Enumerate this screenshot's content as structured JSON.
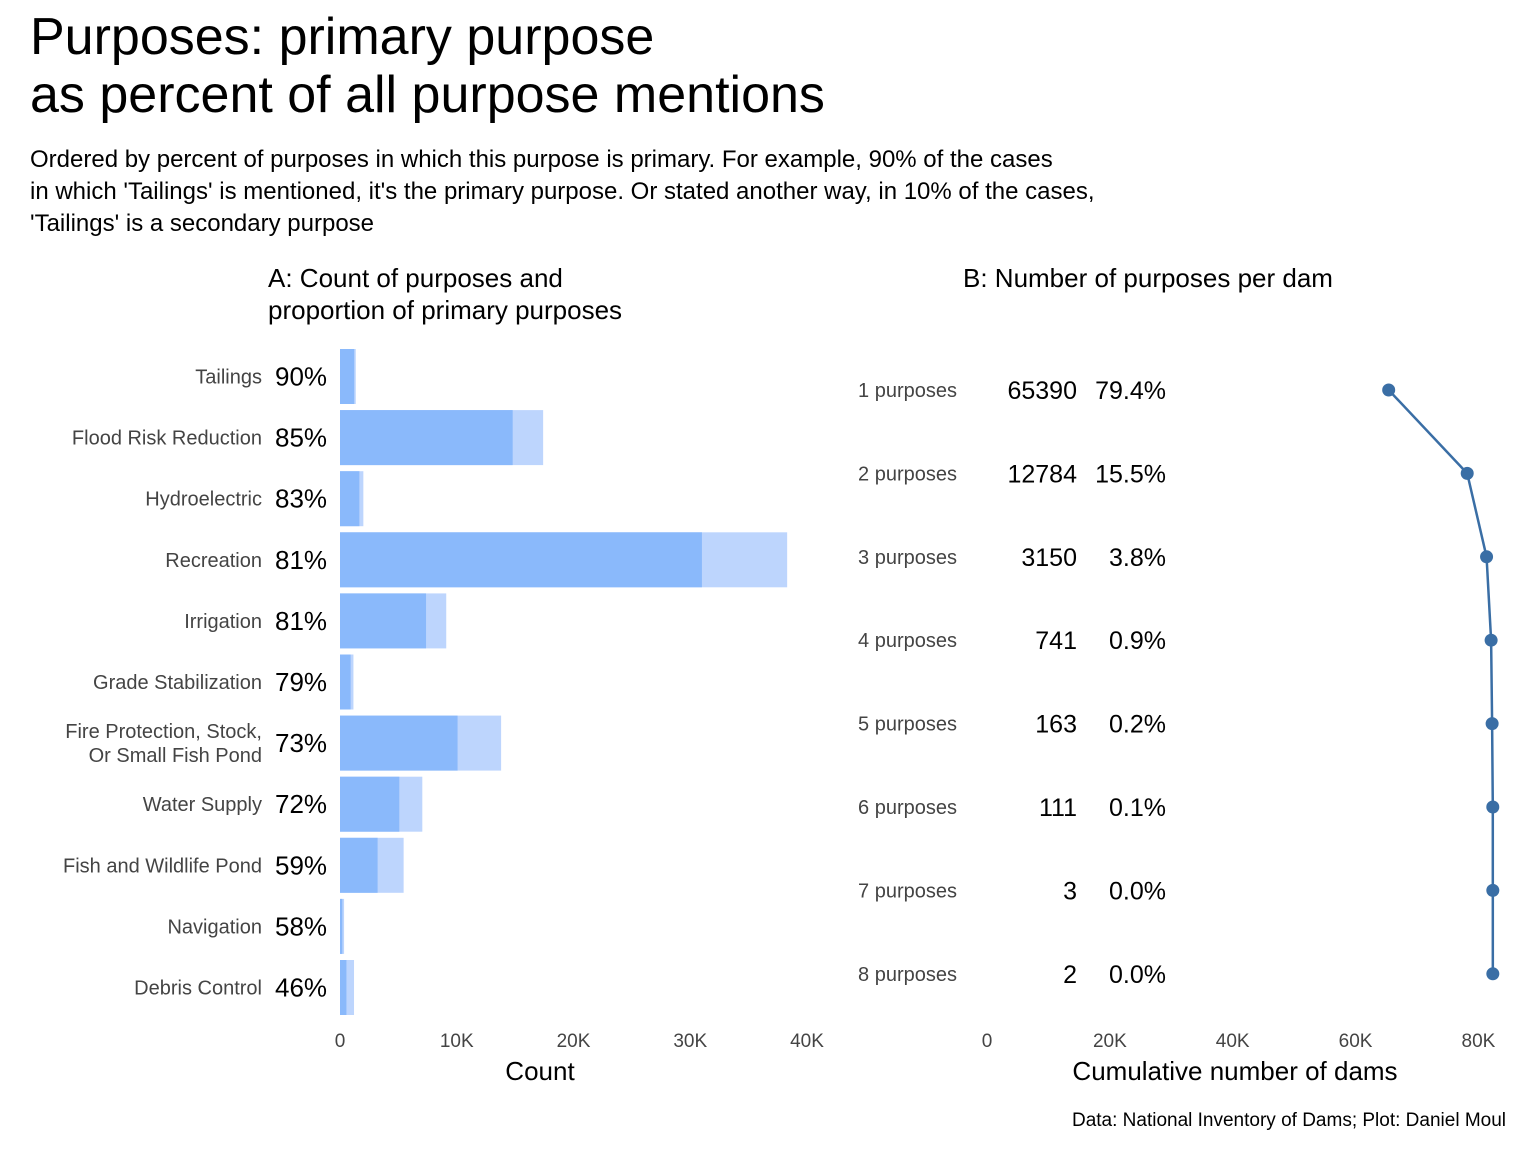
{
  "title_lines": [
    "Purposes: primary purpose",
    "as percent of all purpose mentions"
  ],
  "subtitle_lines": [
    "Ordered by percent of purposes in which this purpose is primary. For example, 90% of the cases",
    "in which 'Tailings' is mentioned, it's the primary purpose. Or stated another way, in 10% of the cases,",
    "'Tailings' is a secondary purpose"
  ],
  "caption": "Data: National Inventory of Dams; Plot: Daniel Moul",
  "colors": {
    "primary": "#8ab9fb",
    "total": "#bdd5fd",
    "line": "#3a6ea5"
  },
  "chart_data": [
    {
      "type": "bar",
      "title_lines": [
        "A: Count of purposes and",
        "proportion of primary purposes"
      ],
      "xlabel": "Count",
      "xlim": [
        0,
        40000
      ],
      "xticks": [
        0,
        10000,
        20000,
        30000,
        40000
      ],
      "xtick_labels": [
        "0",
        "10K",
        "20K",
        "30K",
        "40K"
      ],
      "categories": [
        [
          "Tailings"
        ],
        [
          "Flood Risk Reduction"
        ],
        [
          "Hydroelectric"
        ],
        [
          "Recreation"
        ],
        [
          "Irrigation"
        ],
        [
          "Grade Stabilization"
        ],
        [
          "Fire Protection, Stock,",
          "Or Small Fish Pond"
        ],
        [
          "Water Supply"
        ],
        [
          "Fish and Wildlife Pond"
        ],
        [
          "Navigation"
        ],
        [
          "Debris Control"
        ]
      ],
      "percent_labels": [
        "90%",
        "85%",
        "83%",
        "81%",
        "81%",
        "79%",
        "73%",
        "72%",
        "59%",
        "58%",
        "46%"
      ],
      "series": [
        {
          "values": [
            1350,
            17400,
            2000,
            38300,
            9100,
            1150,
            13800,
            7050,
            5450,
            350,
            1200
          ]
        },
        {
          "values": [
            1215,
            14790,
            1660,
            31000,
            7370,
            910,
            10070,
            5080,
            3220,
            200,
            550
          ]
        }
      ]
    },
    {
      "type": "line",
      "title_lines": [
        "B: Number of purposes per dam"
      ],
      "xlabel": "Cumulative number of dams",
      "xlim": [
        0,
        84000
      ],
      "xticks": [
        0,
        20000,
        40000,
        60000,
        80000
      ],
      "xtick_labels": [
        "0",
        "20K",
        "40K",
        "60K",
        "80K"
      ],
      "categories": [
        "1 purposes",
        "2 purposes",
        "3 purposes",
        "4 purposes",
        "5 purposes",
        "6 purposes",
        "7 purposes",
        "8 purposes"
      ],
      "counts": [
        "65390",
        "12784",
        "3150",
        "741",
        "163",
        "111",
        "3",
        "2"
      ],
      "percents": [
        "79.4%",
        "15.5%",
        "3.8%",
        "0.9%",
        "0.2%",
        "0.1%",
        "0.0%",
        "0.0%"
      ],
      "x": [
        65390,
        78174,
        81324,
        82065,
        82228,
        82339,
        82342,
        82344
      ]
    }
  ]
}
